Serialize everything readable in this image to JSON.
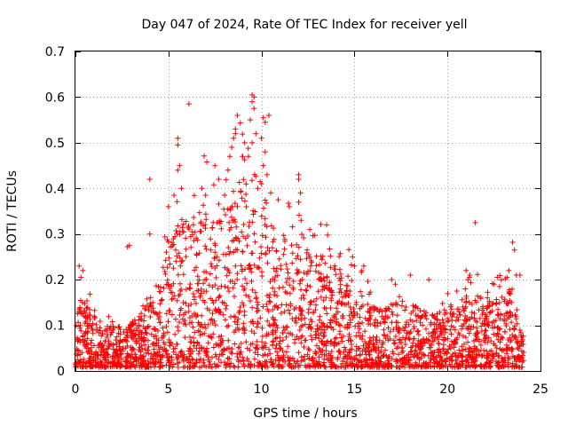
{
  "chart_data": {
    "type": "scatter",
    "title": "Day 047 of 2024, Rate Of TEC Index for receiver yell",
    "xlabel": "GPS time / hours",
    "ylabel": "ROTI / TECUs",
    "xlim": [
      0,
      25
    ],
    "ylim": [
      0,
      0.7
    ],
    "x_ticks": [
      0,
      5,
      10,
      15,
      20,
      25
    ],
    "x_tick_labels": [
      "0",
      "5",
      "10",
      "15",
      "20",
      "25"
    ],
    "y_ticks": [
      0,
      0.1,
      0.2,
      0.3,
      0.4,
      0.5,
      0.6,
      0.7
    ],
    "y_tick_labels": [
      "0",
      "0.1",
      "0.2",
      "0.3",
      "0.4",
      "0.5",
      "0.6",
      "0.7"
    ],
    "grid": true,
    "marker": "+",
    "series_color": "#ff0000",
    "envelope": {
      "description": "approximate upper extent of the dense ROTI point cloud, hours vs TECU",
      "hours": [
        0,
        0.5,
        1,
        1.5,
        2,
        2.5,
        3,
        3.5,
        4,
        4.5,
        5,
        5.5,
        6,
        6.5,
        7,
        7.5,
        8,
        8.5,
        9,
        9.5,
        10,
        10.5,
        11,
        11.5,
        12,
        12.5,
        13,
        13.5,
        14,
        14.5,
        15,
        15.5,
        16,
        16.5,
        17,
        17.5,
        18,
        18.5,
        19,
        19.5,
        20,
        20.5,
        21,
        21.5,
        22,
        22.5,
        23,
        23.5,
        24
      ],
      "upper": [
        0.15,
        0.14,
        0.12,
        0.1,
        0.09,
        0.09,
        0.1,
        0.12,
        0.15,
        0.2,
        0.27,
        0.32,
        0.33,
        0.33,
        0.37,
        0.36,
        0.38,
        0.4,
        0.42,
        0.43,
        0.41,
        0.33,
        0.3,
        0.28,
        0.27,
        0.26,
        0.25,
        0.24,
        0.22,
        0.21,
        0.2,
        0.16,
        0.14,
        0.13,
        0.15,
        0.15,
        0.14,
        0.13,
        0.12,
        0.12,
        0.13,
        0.14,
        0.16,
        0.16,
        0.15,
        0.15,
        0.16,
        0.18,
        0.07
      ]
    },
    "notable_points": [
      {
        "x": 0.2,
        "y": 0.23
      },
      {
        "x": 0.4,
        "y": 0.22
      },
      {
        "x": 0.3,
        "y": 0.205
      },
      {
        "x": 2.9,
        "y": 0.275
      },
      {
        "x": 2.8,
        "y": 0.272
      },
      {
        "x": 4.0,
        "y": 0.42
      },
      {
        "x": 4.0,
        "y": 0.3
      },
      {
        "x": 5.5,
        "y": 0.51
      },
      {
        "x": 5.5,
        "y": 0.495
      },
      {
        "x": 5.6,
        "y": 0.45
      },
      {
        "x": 5.5,
        "y": 0.44
      },
      {
        "x": 5.7,
        "y": 0.4
      },
      {
        "x": 5.3,
        "y": 0.385
      },
      {
        "x": 5.0,
        "y": 0.36
      },
      {
        "x": 6.1,
        "y": 0.585
      },
      {
        "x": 6.8,
        "y": 0.4
      },
      {
        "x": 7.0,
        "y": 0.385
      },
      {
        "x": 7.5,
        "y": 0.45
      },
      {
        "x": 7.7,
        "y": 0.42
      },
      {
        "x": 8.5,
        "y": 0.51
      },
      {
        "x": 8.6,
        "y": 0.52
      },
      {
        "x": 8.7,
        "y": 0.56
      },
      {
        "x": 8.6,
        "y": 0.53
      },
      {
        "x": 8.4,
        "y": 0.49
      },
      {
        "x": 8.3,
        "y": 0.47
      },
      {
        "x": 8.2,
        "y": 0.44
      },
      {
        "x": 9.0,
        "y": 0.47
      },
      {
        "x": 9.1,
        "y": 0.5
      },
      {
        "x": 9.5,
        "y": 0.605
      },
      {
        "x": 9.6,
        "y": 0.6
      },
      {
        "x": 9.5,
        "y": 0.59
      },
      {
        "x": 9.6,
        "y": 0.575
      },
      {
        "x": 9.4,
        "y": 0.55
      },
      {
        "x": 9.7,
        "y": 0.52
      },
      {
        "x": 9.5,
        "y": 0.5
      },
      {
        "x": 9.3,
        "y": 0.47
      },
      {
        "x": 10.1,
        "y": 0.555
      },
      {
        "x": 10.4,
        "y": 0.56
      },
      {
        "x": 10.2,
        "y": 0.545
      },
      {
        "x": 10.0,
        "y": 0.51
      },
      {
        "x": 10.2,
        "y": 0.48
      },
      {
        "x": 10.1,
        "y": 0.45
      },
      {
        "x": 10.3,
        "y": 0.43
      },
      {
        "x": 10.0,
        "y": 0.41
      },
      {
        "x": 9.8,
        "y": 0.4
      },
      {
        "x": 10.5,
        "y": 0.39
      },
      {
        "x": 11.5,
        "y": 0.36
      },
      {
        "x": 12.0,
        "y": 0.43
      },
      {
        "x": 12.0,
        "y": 0.42
      },
      {
        "x": 12.1,
        "y": 0.39
      },
      {
        "x": 12.0,
        "y": 0.37
      },
      {
        "x": 12.6,
        "y": 0.31
      },
      {
        "x": 13.5,
        "y": 0.32
      },
      {
        "x": 14.9,
        "y": 0.25
      },
      {
        "x": 15.0,
        "y": 0.23
      },
      {
        "x": 15.5,
        "y": 0.23
      },
      {
        "x": 15.4,
        "y": 0.22
      },
      {
        "x": 17.0,
        "y": 0.2
      },
      {
        "x": 17.2,
        "y": 0.19
      },
      {
        "x": 18.0,
        "y": 0.21
      },
      {
        "x": 19.0,
        "y": 0.2
      },
      {
        "x": 20.5,
        "y": 0.175
      },
      {
        "x": 21.0,
        "y": 0.22
      },
      {
        "x": 21.2,
        "y": 0.21
      },
      {
        "x": 21.1,
        "y": 0.2
      },
      {
        "x": 21.5,
        "y": 0.325
      },
      {
        "x": 22.5,
        "y": 0.19
      },
      {
        "x": 22.8,
        "y": 0.185
      },
      {
        "x": 23.5,
        "y": 0.282
      },
      {
        "x": 23.6,
        "y": 0.265
      },
      {
        "x": 23.3,
        "y": 0.22
      },
      {
        "x": 23.7,
        "y": 0.21
      },
      {
        "x": 23.9,
        "y": 0.21
      },
      {
        "x": 23.2,
        "y": 0.205
      }
    ]
  }
}
